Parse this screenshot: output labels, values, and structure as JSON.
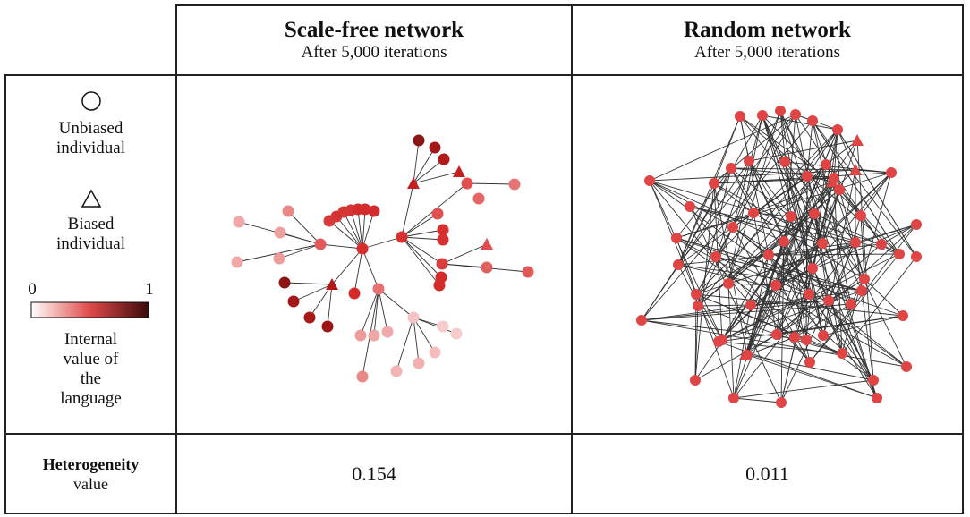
{
  "columns": [
    {
      "title": "Scale-free network",
      "subtitle": "After 5,000 iterations"
    },
    {
      "title": "Random network",
      "subtitle": "After 5,000 iterations"
    }
  ],
  "legend": {
    "circle_label": "Unbiased\nindividual",
    "triangle_label": "Biased\nindividual",
    "scale_min": "0",
    "scale_max": "1",
    "scale_label": "Internal\nvalue of\nthe\nlanguage",
    "color_low": "#ffffff",
    "color_high": "#3b0a0a"
  },
  "heterogeneity": {
    "label": "Heterogeneity",
    "sub": "value",
    "values": [
      "0.154",
      "0.011"
    ]
  }
}
